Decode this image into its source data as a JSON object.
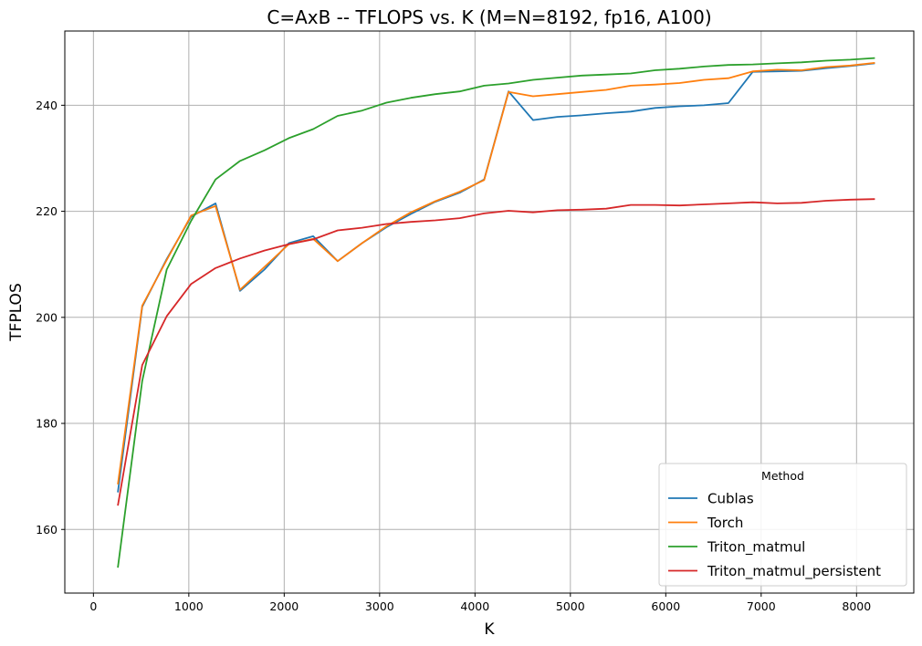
{
  "chart_data": {
    "type": "line",
    "title": "C=AxB -- TFLOPS vs. K (M=N=8192, fp16, A100)",
    "xlabel": "K",
    "ylabel": "TFPLOS",
    "xlim": [
      -300,
      8600
    ],
    "ylim": [
      148,
      254
    ],
    "xticks": [
      0,
      1000,
      2000,
      3000,
      4000,
      5000,
      6000,
      7000,
      8000
    ],
    "yticks": [
      160,
      180,
      200,
      220,
      240
    ],
    "grid": true,
    "legend": {
      "title": "Method",
      "position": "lower-right"
    },
    "x": [
      256,
      512,
      768,
      1024,
      1280,
      1536,
      1792,
      2048,
      2304,
      2560,
      2816,
      3072,
      3328,
      3584,
      3840,
      4096,
      4352,
      4608,
      4864,
      5120,
      5376,
      5632,
      5888,
      6144,
      6400,
      6656,
      6912,
      7168,
      7424,
      7680,
      7936,
      8192
    ],
    "series": [
      {
        "name": "Cublas",
        "color": "#1f77b4",
        "values": [
          167.0,
          202.0,
          211.0,
          219.0,
          221.5,
          205.0,
          209.0,
          214.0,
          215.3,
          210.6,
          214.0,
          217.0,
          219.5,
          221.8,
          223.5,
          226.0,
          242.6,
          237.2,
          237.8,
          238.1,
          238.5,
          238.8,
          239.5,
          239.8,
          240.0,
          240.4,
          246.3,
          246.4,
          246.5,
          247.0,
          247.4,
          247.9
        ]
      },
      {
        "name": "Torch",
        "color": "#ff7f0e",
        "values": [
          168.5,
          202.2,
          210.8,
          219.2,
          221.0,
          205.2,
          209.5,
          213.8,
          214.8,
          210.6,
          214.0,
          217.2,
          219.8,
          221.9,
          223.7,
          225.9,
          242.5,
          241.7,
          242.1,
          242.5,
          242.9,
          243.7,
          243.9,
          244.2,
          244.8,
          245.1,
          246.4,
          246.7,
          246.6,
          247.2,
          247.5,
          248.0
        ]
      },
      {
        "name": "Triton_matmul",
        "color": "#2ca02c",
        "values": [
          152.8,
          188.0,
          209.0,
          218.2,
          226.0,
          229.5,
          231.5,
          233.8,
          235.5,
          238.0,
          239.0,
          240.5,
          241.4,
          242.1,
          242.6,
          243.7,
          244.1,
          244.8,
          245.2,
          245.6,
          245.8,
          246.0,
          246.6,
          246.9,
          247.3,
          247.6,
          247.7,
          247.9,
          248.1,
          248.4,
          248.6,
          248.9
        ]
      },
      {
        "name": "Triton_matmul_persistent",
        "color": "#d62728",
        "values": [
          164.5,
          191.0,
          200.2,
          206.3,
          209.3,
          211.1,
          212.6,
          213.8,
          214.7,
          216.4,
          216.9,
          217.6,
          218.0,
          218.3,
          218.7,
          219.6,
          220.1,
          219.8,
          220.2,
          220.3,
          220.5,
          221.2,
          221.2,
          221.1,
          221.3,
          221.5,
          221.7,
          221.5,
          221.6,
          222.0,
          222.2,
          222.3
        ]
      }
    ]
  }
}
